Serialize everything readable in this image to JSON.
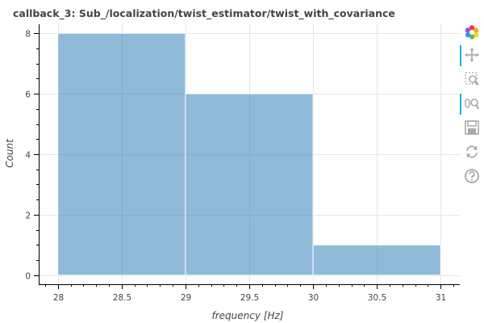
{
  "chart_data": {
    "type": "bar",
    "title": "callback_3: Sub_/localization/twist_estimator/twist_with_covariance",
    "xlabel": "frequency [Hz]",
    "ylabel": "Count",
    "xlim": [
      27.85,
      31.15
    ],
    "ylim": [
      -0.3,
      8.3
    ],
    "x_ticks": [
      28,
      28.5,
      29,
      29.5,
      30,
      30.5,
      31
    ],
    "x_tick_labels": [
      "28",
      "28.5",
      "29",
      "29.5",
      "30",
      "30.5",
      "31"
    ],
    "y_ticks": [
      0,
      2,
      4,
      6,
      8
    ],
    "y_tick_labels": [
      "0",
      "2",
      "4",
      "6",
      "8"
    ],
    "grid": true,
    "bins": [
      {
        "left": 28,
        "right": 29,
        "count": 8
      },
      {
        "left": 29,
        "right": 30,
        "count": 6
      },
      {
        "left": 30,
        "right": 31,
        "count": 1
      }
    ],
    "bar_color": "#1f77b4",
    "bar_opacity": 0.5
  },
  "toolbar": {
    "tools": [
      "bokeh-logo-icon",
      "pan-icon",
      "box-zoom-icon",
      "wheel-zoom-icon",
      "save-icon",
      "reset-icon",
      "help-icon"
    ]
  },
  "colors": {
    "text": "#444444",
    "grid": "#e5e5e5",
    "toolbar_active": "#26aae1",
    "toolbar_icon": "#a8a8a8"
  }
}
